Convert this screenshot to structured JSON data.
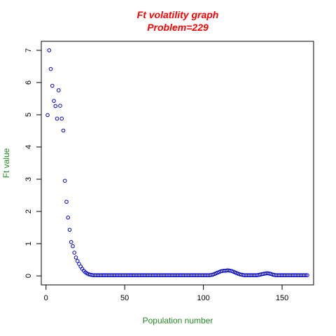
{
  "chart_data": {
    "type": "scatter",
    "title": "Ft volatility graph",
    "subtitle": "Problem=229",
    "xlabel": "Population number",
    "ylabel": "Ft value",
    "xlim": [
      -3,
      170
    ],
    "ylim": [
      -0.28,
      7.28
    ],
    "xticks": [
      0,
      50,
      100,
      150
    ],
    "yticks": [
      0,
      1,
      2,
      3,
      4,
      5,
      6,
      7
    ],
    "grid": false,
    "colors": {
      "title": "#ff0000",
      "axis_label": "#228b22",
      "points": "#0000cd"
    },
    "x": [
      1,
      2,
      3,
      4,
      5,
      6,
      7,
      8,
      9,
      10,
      11,
      12,
      13,
      14,
      15,
      16,
      17,
      18,
      19,
      20,
      21,
      22,
      23,
      24,
      25,
      26,
      27,
      28,
      29,
      30,
      31,
      32,
      33,
      34,
      35,
      36,
      37,
      38,
      39,
      40,
      41,
      42,
      43,
      44,
      45,
      46,
      47,
      48,
      49,
      50,
      51,
      52,
      53,
      54,
      55,
      56,
      57,
      58,
      59,
      60,
      61,
      62,
      63,
      64,
      65,
      66,
      67,
      68,
      69,
      70,
      71,
      72,
      73,
      74,
      75,
      76,
      77,
      78,
      79,
      80,
      81,
      82,
      83,
      84,
      85,
      86,
      87,
      88,
      89,
      90,
      91,
      92,
      93,
      94,
      95,
      96,
      97,
      98,
      99,
      100,
      101,
      102,
      103,
      104,
      105,
      106,
      107,
      108,
      109,
      110,
      111,
      112,
      113,
      114,
      115,
      116,
      117,
      118,
      119,
      120,
      121,
      122,
      123,
      124,
      125,
      126,
      127,
      128,
      129,
      130,
      131,
      132,
      133,
      134,
      135,
      136,
      137,
      138,
      139,
      140,
      141,
      142,
      143,
      144,
      145,
      146,
      147,
      148,
      149,
      150,
      151,
      152,
      153,
      154,
      155,
      156,
      157,
      158,
      159,
      160,
      161,
      162,
      163,
      164,
      165,
      166
    ],
    "y": [
      4.99,
      7.0,
      6.42,
      5.9,
      5.43,
      5.27,
      4.88,
      5.76,
      5.28,
      4.88,
      4.51,
      2.95,
      2.3,
      1.81,
      1.43,
      1.05,
      0.92,
      0.72,
      0.57,
      0.46,
      0.37,
      0.29,
      0.22,
      0.16,
      0.11,
      0.08,
      0.05,
      0.04,
      0.03,
      0.02,
      0.02,
      0.02,
      0.02,
      0.02,
      0.02,
      0.02,
      0.02,
      0.02,
      0.02,
      0.02,
      0.02,
      0.02,
      0.02,
      0.02,
      0.02,
      0.02,
      0.02,
      0.02,
      0.02,
      0.02,
      0.02,
      0.02,
      0.02,
      0.02,
      0.02,
      0.02,
      0.02,
      0.02,
      0.02,
      0.02,
      0.02,
      0.02,
      0.02,
      0.02,
      0.02,
      0.02,
      0.02,
      0.02,
      0.02,
      0.02,
      0.02,
      0.02,
      0.02,
      0.02,
      0.02,
      0.02,
      0.02,
      0.02,
      0.02,
      0.02,
      0.02,
      0.02,
      0.02,
      0.02,
      0.02,
      0.02,
      0.02,
      0.02,
      0.02,
      0.02,
      0.02,
      0.02,
      0.02,
      0.02,
      0.02,
      0.02,
      0.02,
      0.02,
      0.02,
      0.02,
      0.02,
      0.02,
      0.02,
      0.02,
      0.03,
      0.04,
      0.06,
      0.08,
      0.1,
      0.12,
      0.14,
      0.15,
      0.16,
      0.16,
      0.17,
      0.17,
      0.16,
      0.15,
      0.13,
      0.11,
      0.09,
      0.07,
      0.05,
      0.04,
      0.03,
      0.02,
      0.02,
      0.02,
      0.02,
      0.02,
      0.02,
      0.02,
      0.02,
      0.02,
      0.03,
      0.04,
      0.05,
      0.06,
      0.07,
      0.08,
      0.08,
      0.07,
      0.06,
      0.04,
      0.03,
      0.02,
      0.02,
      0.02,
      0.02,
      0.02,
      0.02,
      0.02,
      0.02,
      0.02,
      0.02,
      0.02,
      0.02,
      0.02,
      0.02,
      0.02,
      0.02,
      0.02,
      0.02,
      0.02,
      0.02,
      0.02
    ]
  }
}
